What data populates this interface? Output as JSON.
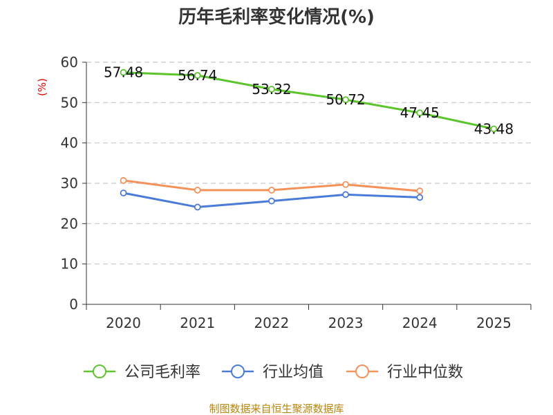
{
  "chart_data": {
    "type": "line",
    "title": "历年毛利率变化情况(%)",
    "ylabel": "(%)",
    "xlabel": "",
    "categories": [
      "2020",
      "2021",
      "2022",
      "2023",
      "2024",
      "2025"
    ],
    "ylim": [
      0,
      60
    ],
    "yticks": [
      "0",
      "10",
      "20",
      "30",
      "40",
      "50",
      "60"
    ],
    "grid": true,
    "legend_position": "bottom",
    "series": [
      {
        "name": "公司毛利率",
        "color": "#5cc52c",
        "values": [
          57.48,
          56.74,
          53.32,
          50.72,
          47.45,
          43.48
        ],
        "labels": [
          "57.48",
          "56.74",
          "53.32",
          "50.72",
          "47.45",
          "43.48"
        ]
      },
      {
        "name": "行业均值",
        "color": "#4b7bd9",
        "values": [
          27.6,
          24.1,
          25.6,
          27.2,
          26.5,
          null
        ]
      },
      {
        "name": "行业中位数",
        "color": "#f5925a",
        "values": [
          30.7,
          28.3,
          28.3,
          29.7,
          28.1,
          null
        ]
      }
    ]
  },
  "source": "制图数据来自恒生聚源数据库"
}
